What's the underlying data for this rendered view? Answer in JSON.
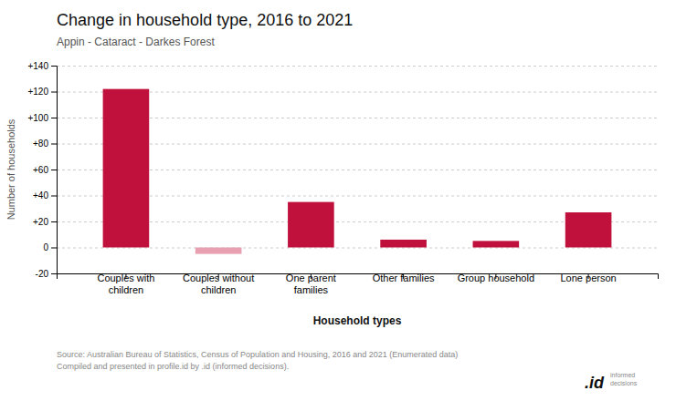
{
  "chart_data": {
    "type": "bar",
    "title": "Change in household type, 2016 to 2021",
    "subtitle": "Appin - Cataract - Darkes Forest",
    "categories": [
      "Couples with\nchildren",
      "Couples without\nchildren",
      "One parent\nfamilies",
      "Other families",
      "Group household",
      "Lone person"
    ],
    "values": [
      122,
      -5,
      35,
      6,
      5,
      27
    ],
    "colors": [
      "#c0103c",
      "#e8a0b0",
      "#c0103c",
      "#c0103c",
      "#c0103c",
      "#c0103c"
    ],
    "xlabel": "Household types",
    "ylabel": "Number of households",
    "ylim": [
      -20,
      140
    ],
    "yticks": [
      -20,
      0,
      {
        "value": 20,
        "label": "+20"
      },
      {
        "value": 40,
        "label": "+40"
      },
      {
        "value": 60,
        "label": "+60"
      },
      {
        "value": 80,
        "label": "+80"
      },
      {
        "value": 100,
        "label": "+100"
      },
      {
        "value": 120,
        "label": "+120"
      },
      {
        "value": 140,
        "label": "+140"
      }
    ],
    "grid": true,
    "annotations": [
      "Source: Australian Bureau of Statistics, Census of Population and Housing, 2016 and 2021 (Enumerated data)\nCompiled and presented in profile.id by .id (informed decisions).",
      ".id",
      "informed\ndecisions"
    ]
  }
}
